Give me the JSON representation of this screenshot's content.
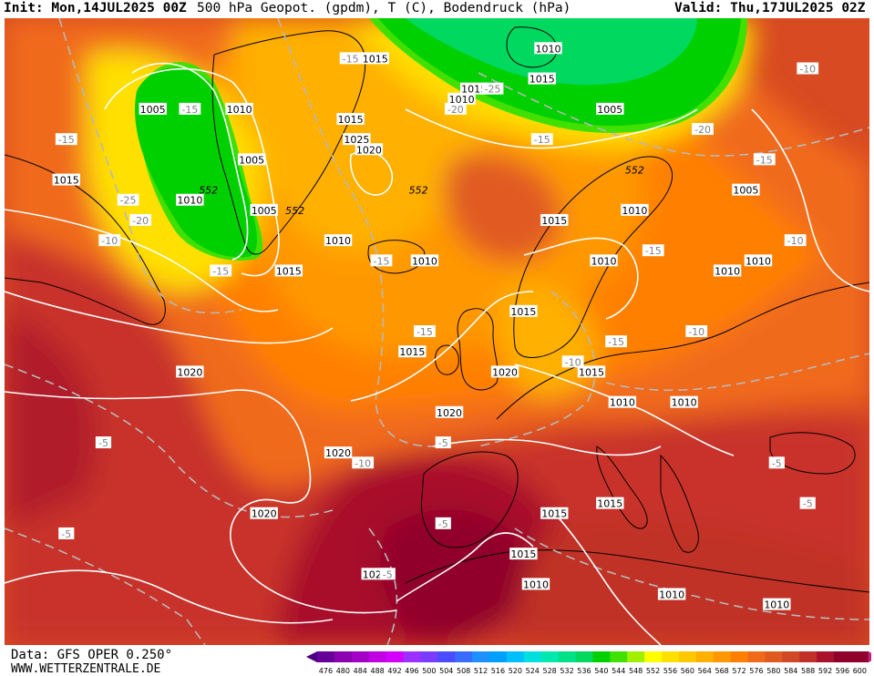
{
  "header": {
    "init": "Init: Mon,14JUL2025 00Z",
    "title": "500 hPa Geopot. (gpdm), T (C), Bodendruck (hPa)",
    "valid": "Valid: Thu,17JUL2025 02Z"
  },
  "footer": {
    "data_source": "Data: GFS OPER 0.250°",
    "website": "WWW.WETTERZENTRALE.DE"
  },
  "colors": {
    "land_outline": "#000000",
    "isobar": "#ffffff",
    "isotherm": "#c8c8c8"
  },
  "legend": {
    "ticks": [
      "476",
      "480",
      "484",
      "488",
      "492",
      "496",
      "500",
      "504",
      "508",
      "512",
      "516",
      "520",
      "524",
      "528",
      "532",
      "536",
      "540",
      "544",
      "548",
      "552",
      "556",
      "560",
      "564",
      "568",
      "572",
      "576",
      "580",
      "584",
      "588",
      "592",
      "596",
      "600"
    ],
    "colors": [
      "#4b0082",
      "#660099",
      "#8b00b0",
      "#a300c8",
      "#c000e0",
      "#d400ff",
      "#9b30ff",
      "#7a3cff",
      "#4b4bff",
      "#3a6bff",
      "#1e90ff",
      "#00a0ff",
      "#00bfff",
      "#00dfe0",
      "#00e8b0",
      "#00e088",
      "#00d860",
      "#00d000",
      "#40e000",
      "#a0f000",
      "#ffff00",
      "#ffe000",
      "#ffc800",
      "#ffb000",
      "#ff9800",
      "#ff8000",
      "#f06a1a",
      "#e05a20",
      "#d04824",
      "#c03028",
      "#a8102c",
      "#90002c",
      "#c0208a"
    ]
  },
  "geopotential_labels": [
    {
      "text": "552",
      "lon": -47,
      "lat": 65
    },
    {
      "text": "552",
      "lon": -13,
      "lat": 65
    },
    {
      "text": "552",
      "lon": 22,
      "lat": 67
    },
    {
      "text": "552",
      "lon": -33,
      "lat": 63
    }
  ],
  "isobar_labels": [
    {
      "text": "1015",
      "lon": -20,
      "lat": 78
    },
    {
      "text": "1010",
      "lon": 8,
      "lat": 79
    },
    {
      "text": "1005",
      "lon": -56,
      "lat": 73
    },
    {
      "text": "1010",
      "lon": -42,
      "lat": 73
    },
    {
      "text": "1015",
      "lon": -24,
      "lat": 72
    },
    {
      "text": "1015",
      "lon": -4,
      "lat": 75
    },
    {
      "text": "1010",
      "lon": -6,
      "lat": 74
    },
    {
      "text": "1015",
      "lon": 7,
      "lat": 76
    },
    {
      "text": "1005",
      "lon": 18,
      "lat": 73
    },
    {
      "text": "1005",
      "lon": -40,
      "lat": 68
    },
    {
      "text": "1025",
      "lon": -23,
      "lat": 70
    },
    {
      "text": "1020",
      "lon": -21,
      "lat": 69
    },
    {
      "text": "1015",
      "lon": -70,
      "lat": 66
    },
    {
      "text": "1010",
      "lon": -50,
      "lat": 64
    },
    {
      "text": "1005",
      "lon": -38,
      "lat": 63
    },
    {
      "text": "1010",
      "lon": -26,
      "lat": 60
    },
    {
      "text": "1015",
      "lon": -34,
      "lat": 57
    },
    {
      "text": "1010",
      "lon": -12,
      "lat": 58
    },
    {
      "text": "1015",
      "lon": 9,
      "lat": 62
    },
    {
      "text": "1010",
      "lon": 22,
      "lat": 63
    },
    {
      "text": "1005",
      "lon": 40,
      "lat": 65
    },
    {
      "text": "1010",
      "lon": 37,
      "lat": 57
    },
    {
      "text": "1010",
      "lon": 42,
      "lat": 58
    },
    {
      "text": "1010",
      "lon": 17,
      "lat": 58
    },
    {
      "text": "1015",
      "lon": 4,
      "lat": 53
    },
    {
      "text": "1020",
      "lon": -50,
      "lat": 47
    },
    {
      "text": "1015",
      "lon": -14,
      "lat": 49
    },
    {
      "text": "1020",
      "lon": 1,
      "lat": 47
    },
    {
      "text": "1015",
      "lon": 15,
      "lat": 47
    },
    {
      "text": "1020",
      "lon": -8,
      "lat": 43
    },
    {
      "text": "1010",
      "lon": 20,
      "lat": 44
    },
    {
      "text": "1010",
      "lon": 30,
      "lat": 44
    },
    {
      "text": "1020",
      "lon": -26,
      "lat": 39
    },
    {
      "text": "1015",
      "lon": 9,
      "lat": 33
    },
    {
      "text": "1015",
      "lon": 18,
      "lat": 34
    },
    {
      "text": "1020",
      "lon": -38,
      "lat": 33
    },
    {
      "text": "1015",
      "lon": 4,
      "lat": 29
    },
    {
      "text": "1020",
      "lon": -20,
      "lat": 27
    },
    {
      "text": "1010",
      "lon": 6,
      "lat": 26
    },
    {
      "text": "1010",
      "lon": 28,
      "lat": 25
    },
    {
      "text": "1010",
      "lon": 45,
      "lat": 24
    }
  ],
  "isotherm_labels": [
    {
      "text": "-15",
      "lon": -24,
      "lat": 78
    },
    {
      "text": "-15",
      "lon": -50,
      "lat": 73
    },
    {
      "text": "-15",
      "lon": -70,
      "lat": 70
    },
    {
      "text": "-25",
      "lon": -1,
      "lat": 75
    },
    {
      "text": "-20",
      "lon": -7,
      "lat": 73
    },
    {
      "text": "-15",
      "lon": 7,
      "lat": 70
    },
    {
      "text": "-20",
      "lon": 33,
      "lat": 71
    },
    {
      "text": "-10",
      "lon": 50,
      "lat": 77
    },
    {
      "text": "-15",
      "lon": 43,
      "lat": 68
    },
    {
      "text": "-25",
      "lon": -60,
      "lat": 64
    },
    {
      "text": "-20",
      "lon": -58,
      "lat": 62
    },
    {
      "text": "-10",
      "lon": -63,
      "lat": 60
    },
    {
      "text": "-15",
      "lon": -45,
      "lat": 57
    },
    {
      "text": "-15",
      "lon": -19,
      "lat": 58
    },
    {
      "text": "-15",
      "lon": 25,
      "lat": 59
    },
    {
      "text": "-10",
      "lon": 48,
      "lat": 60
    },
    {
      "text": "-15",
      "lon": -12,
      "lat": 51
    },
    {
      "text": "-15",
      "lon": 19,
      "lat": 50
    },
    {
      "text": "-10",
      "lon": 32,
      "lat": 51
    },
    {
      "text": "-10",
      "lon": 12,
      "lat": 48
    },
    {
      "text": "-5",
      "lon": -64,
      "lat": 40
    },
    {
      "text": "-5",
      "lon": -9,
      "lat": 40
    },
    {
      "text": "-10",
      "lon": -22,
      "lat": 38
    },
    {
      "text": "-5",
      "lon": 45,
      "lat": 38
    },
    {
      "text": "-5",
      "lon": 50,
      "lat": 34
    },
    {
      "text": "-5",
      "lon": -9,
      "lat": 32
    },
    {
      "text": "-5",
      "lon": -70,
      "lat": 31
    },
    {
      "text": "-5",
      "lon": -18,
      "lat": 27
    }
  ]
}
